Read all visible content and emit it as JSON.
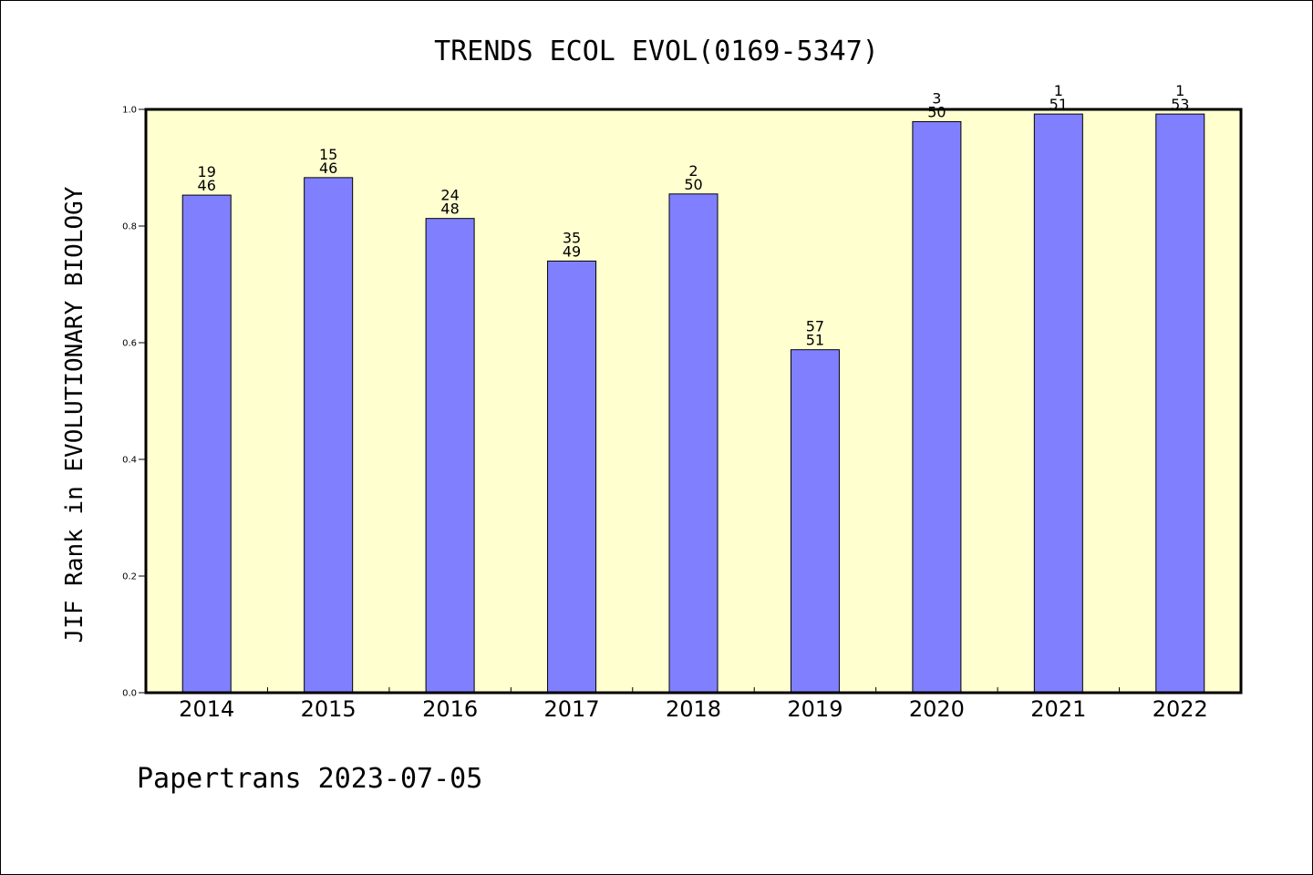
{
  "footer": "Papertrans 2023-07-05",
  "colors": {
    "plot_background": "#ffffd0",
    "bar": "#8080ff",
    "axis": "#000000"
  },
  "chart_data": {
    "type": "bar",
    "title": "TRENDS ECOL EVOL(0169-5347)",
    "xlabel": "",
    "ylabel": "JIF Rank in EVOLUTIONARY BIOLOGY",
    "ylim": [
      0,
      1
    ],
    "yticks": [
      "0.0",
      "0.2",
      "0.4",
      "0.6",
      "0.8",
      "1.0"
    ],
    "grid": false,
    "categories": [
      "2014",
      "2015",
      "2016",
      "2017",
      "2018",
      "2019",
      "2020",
      "2021",
      "2022"
    ],
    "values": [
      0.853,
      0.883,
      0.813,
      0.74,
      0.855,
      0.588,
      0.979,
      0.992,
      0.992
    ],
    "rank": [
      "19",
      "15",
      "24",
      "35",
      "2",
      "57",
      "3",
      "1",
      "1"
    ],
    "total": [
      "46",
      "46",
      "48",
      "49",
      "50",
      "51",
      "50",
      "51",
      "53"
    ]
  }
}
